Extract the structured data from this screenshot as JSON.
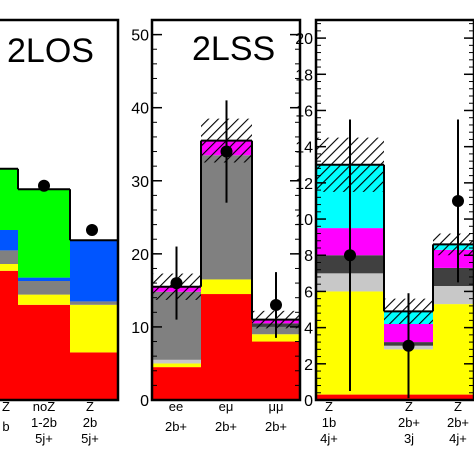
{
  "chart_data": [
    {
      "type": "bar",
      "title": "2LOS",
      "stacked": true,
      "categories": [
        [
          "Z",
          "b"
        ],
        [
          "noZ",
          "1-2b",
          "5j+"
        ],
        [
          "Z",
          "2b",
          "5j+"
        ]
      ],
      "ylim": [
        0,
        50
      ],
      "yticks": [],
      "series": [
        {
          "color": "#ff0000",
          "values": [
            19,
            14,
            7
          ]
        },
        {
          "color": "#ffff00",
          "values": [
            1,
            1.5,
            7
          ]
        },
        {
          "color": "#808080",
          "values": [
            2,
            2,
            0.5
          ]
        },
        {
          "color": "#0055ff",
          "values": [
            3,
            0.5,
            9
          ]
        },
        {
          "color": "#ff00ff",
          "values": [
            0,
            0,
            0
          ]
        },
        {
          "color": "#00ff00",
          "values": [
            9,
            13,
            0
          ]
        }
      ],
      "data_points": [
        null,
        31.5,
        25
      ]
    },
    {
      "type": "bar",
      "title": "2LSS",
      "stacked": true,
      "categories": [
        [
          "ee",
          "2b+"
        ],
        [
          "eμ",
          "2b+"
        ],
        [
          "μμ",
          "2b+"
        ]
      ],
      "ylim": [
        0,
        52
      ],
      "yticks": [
        "0",
        "10",
        "20",
        "30",
        "40",
        "50"
      ],
      "series": [
        {
          "color": "#ff0000",
          "values": [
            4.5,
            14.5,
            8
          ]
        },
        {
          "color": "#ffff00",
          "values": [
            0.5,
            2,
            1
          ]
        },
        {
          "color": "#c8c8c8",
          "values": [
            0.5,
            0,
            0
          ]
        },
        {
          "color": "#808080",
          "values": [
            9.3,
            17,
            1
          ]
        },
        {
          "color": "#404040",
          "values": [
            0,
            0,
            0.5
          ]
        },
        {
          "color": "#ff00ff",
          "values": [
            0.7,
            2,
            0.5
          ]
        },
        {
          "color": "#00ffff",
          "values": [
            0,
            0,
            0
          ]
        }
      ],
      "data_points": [
        16,
        34,
        13
      ],
      "data_errors": [
        5,
        7,
        4.5
      ],
      "band_halfwidth": [
        1.8,
        3,
        1.2
      ]
    },
    {
      "type": "bar",
      "title": "",
      "stacked": true,
      "categories": [
        [
          "Z",
          "1b",
          "4j+"
        ],
        [
          "Z",
          "2b+",
          "3j"
        ],
        [
          "Z",
          "2b+",
          "4j+"
        ]
      ],
      "ylim": [
        0,
        21
      ],
      "yticks": [
        "0",
        "2",
        "4",
        "6",
        "8",
        "10",
        "12",
        "14",
        "16",
        "18",
        "20"
      ],
      "series": [
        {
          "color": "#ff0000",
          "values": [
            0.3,
            0.3,
            0.3
          ]
        },
        {
          "color": "#ffff00",
          "values": [
            5.7,
            2.5,
            5
          ]
        },
        {
          "color": "#c8c8c8",
          "values": [
            1,
            0.2,
            1
          ]
        },
        {
          "color": "#404040",
          "values": [
            1,
            0.2,
            1
          ]
        },
        {
          "color": "#ff00ff",
          "values": [
            1.5,
            1,
            1
          ]
        },
        {
          "color": "#00ffff",
          "values": [
            3.5,
            0.7,
            0.3
          ]
        }
      ],
      "data_points": [
        8,
        3,
        11
      ],
      "data_errors": [
        7.5,
        2.9,
        4.5
      ],
      "band_halfwidth": [
        1.5,
        0.7,
        0.6
      ]
    }
  ]
}
